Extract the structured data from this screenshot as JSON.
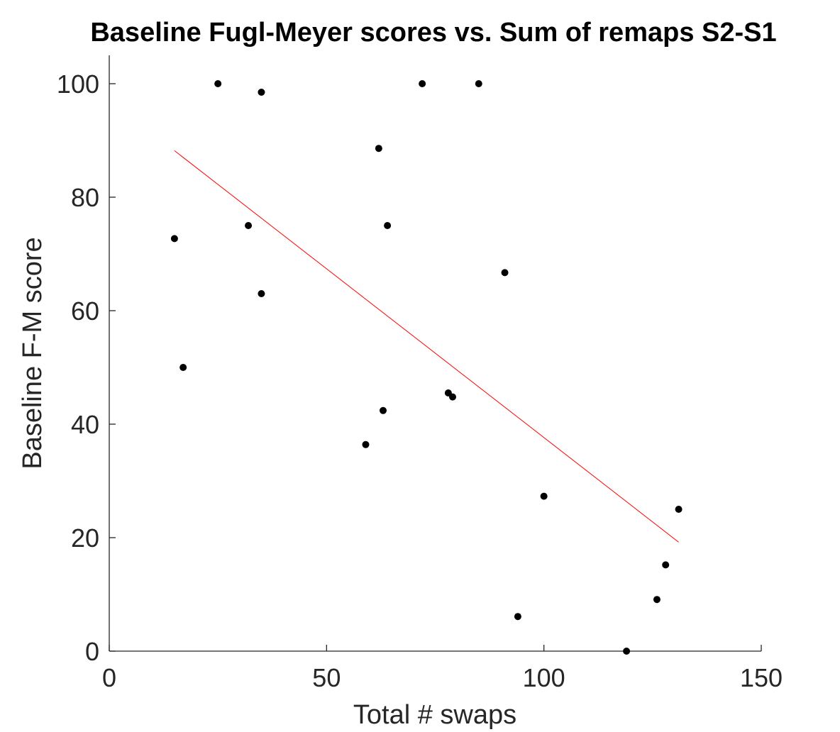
{
  "chart_data": {
    "type": "scatter",
    "title": "Baseline Fugl-Meyer scores vs. Sum of remaps S2-S1",
    "xlabel": "Total # swaps",
    "ylabel": "Baseline F-M score",
    "xlim": [
      0,
      150
    ],
    "ylim": [
      0,
      105
    ],
    "xticks": [
      0,
      50,
      100,
      150
    ],
    "yticks": [
      0,
      20,
      40,
      60,
      80,
      100
    ],
    "grid": false,
    "legend": "none",
    "colors": {
      "points": "#000000",
      "fit_line": "#ff0000",
      "axes": "#262626"
    },
    "points": [
      {
        "x": 15,
        "y": 72.7
      },
      {
        "x": 17,
        "y": 50
      },
      {
        "x": 25,
        "y": 100
      },
      {
        "x": 32,
        "y": 75
      },
      {
        "x": 35,
        "y": 98.5
      },
      {
        "x": 35,
        "y": 63
      },
      {
        "x": 59,
        "y": 36.4
      },
      {
        "x": 62,
        "y": 88.6
      },
      {
        "x": 63,
        "y": 42.4
      },
      {
        "x": 64,
        "y": 75
      },
      {
        "x": 72,
        "y": 100
      },
      {
        "x": 78,
        "y": 45.5
      },
      {
        "x": 79,
        "y": 44.8
      },
      {
        "x": 85,
        "y": 100
      },
      {
        "x": 91,
        "y": 66.7
      },
      {
        "x": 94,
        "y": 6.1
      },
      {
        "x": 100,
        "y": 27.3
      },
      {
        "x": 119,
        "y": 0
      },
      {
        "x": 126,
        "y": 9.1
      },
      {
        "x": 128,
        "y": 15.2
      },
      {
        "x": 131,
        "y": 25
      }
    ],
    "fit_line": {
      "x": [
        15,
        131
      ],
      "y": [
        88.2,
        19.2
      ]
    }
  }
}
